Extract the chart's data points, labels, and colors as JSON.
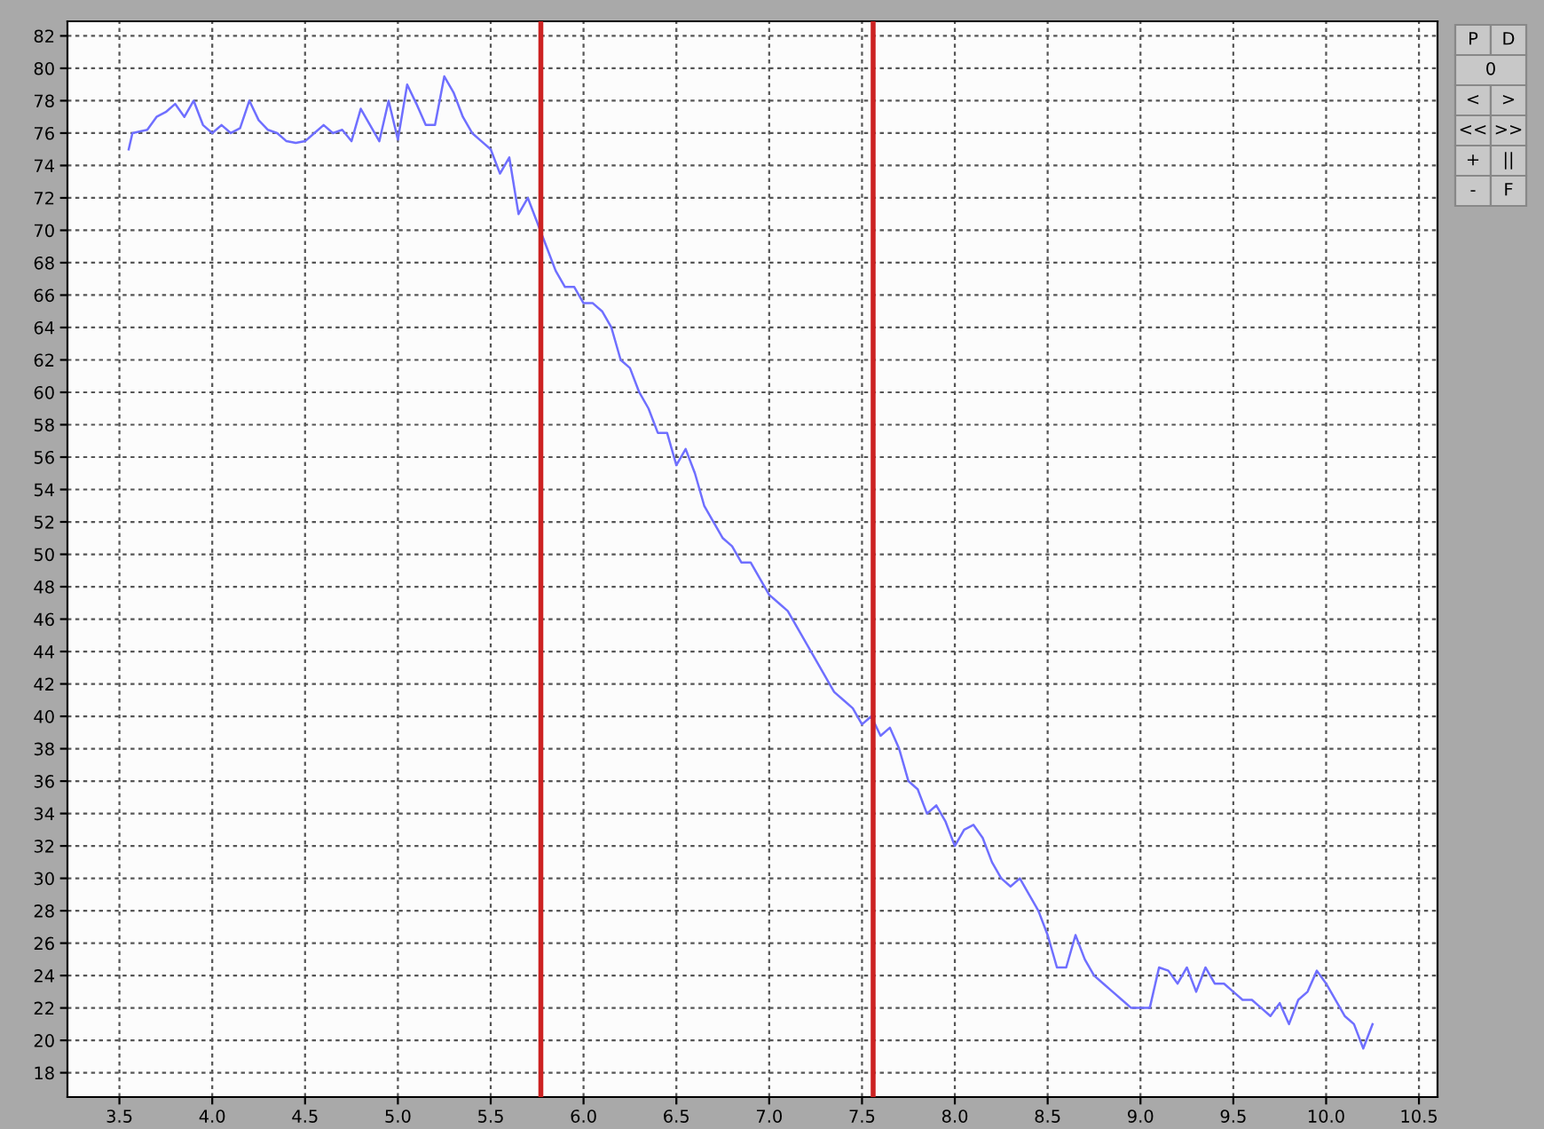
{
  "chart_data": {
    "type": "line",
    "x": [
      3.55,
      3.57,
      3.65,
      3.7,
      3.75,
      3.8,
      3.85,
      3.9,
      3.95,
      4.0,
      4.05,
      4.1,
      4.15,
      4.2,
      4.25,
      4.3,
      4.35,
      4.4,
      4.45,
      4.5,
      4.55,
      4.6,
      4.65,
      4.7,
      4.75,
      4.8,
      4.85,
      4.9,
      4.95,
      5.0,
      5.05,
      5.1,
      5.15,
      5.2,
      5.25,
      5.3,
      5.35,
      5.4,
      5.45,
      5.5,
      5.55,
      5.6,
      5.65,
      5.7,
      5.75,
      5.8,
      5.85,
      5.9,
      5.95,
      6.0,
      6.05,
      6.1,
      6.15,
      6.2,
      6.25,
      6.3,
      6.35,
      6.4,
      6.45,
      6.5,
      6.55,
      6.6,
      6.65,
      6.7,
      6.75,
      6.8,
      6.85,
      6.9,
      6.95,
      7.0,
      7.05,
      7.1,
      7.15,
      7.2,
      7.25,
      7.3,
      7.35,
      7.4,
      7.45,
      7.5,
      7.55,
      7.6,
      7.65,
      7.7,
      7.75,
      7.8,
      7.85,
      7.9,
      7.95,
      8.0,
      8.05,
      8.1,
      8.15,
      8.2,
      8.25,
      8.3,
      8.35,
      8.4,
      8.45,
      8.5,
      8.55,
      8.6,
      8.65,
      8.7,
      8.75,
      8.8,
      8.85,
      8.9,
      8.95,
      9.0,
      9.05,
      9.1,
      9.15,
      9.2,
      9.25,
      9.3,
      9.35,
      9.4,
      9.45,
      9.5,
      9.55,
      9.6,
      9.65,
      9.7,
      9.75,
      9.8,
      9.85,
      9.9,
      9.95,
      10.0,
      10.05,
      10.1,
      10.15,
      10.2,
      10.25
    ],
    "series": [
      {
        "color": "#6f6fff",
        "values": [
          75,
          76,
          76.2,
          77,
          77.3,
          77.8,
          77,
          78,
          76.5,
          76,
          76.5,
          76,
          76.3,
          78,
          76.8,
          76.2,
          76,
          75.5,
          75.4,
          75.5,
          76,
          76.5,
          76,
          76.2,
          75.5,
          77.5,
          76.5,
          75.5,
          78,
          75.6,
          79,
          77.8,
          76.5,
          76.5,
          79.5,
          78.5,
          77,
          76,
          75.5,
          75,
          73.5,
          74.5,
          71,
          72,
          70.5,
          69,
          67.5,
          66.5,
          66.5,
          65.5,
          65.5,
          65,
          64,
          62,
          61.5,
          60,
          59,
          57.5,
          57.5,
          55.5,
          56.5,
          55,
          53,
          52,
          51,
          50.5,
          49.5,
          49.5,
          48.5,
          47.5,
          47,
          46.5,
          45.5,
          44.5,
          43.5,
          42.5,
          41.5,
          41,
          40.5,
          39.5,
          40,
          38.8,
          39.3,
          38,
          36,
          35.5,
          34,
          34.5,
          33.5,
          32,
          33,
          33.3,
          32.5,
          31,
          30,
          29.5,
          30,
          29,
          28,
          26.5,
          24.5,
          24.5,
          26.5,
          25,
          24,
          23.5,
          23,
          22.5,
          22,
          22,
          22,
          24.5,
          24.3,
          23.5,
          24.5,
          23,
          24.5,
          23.5,
          23.5,
          23,
          22.5,
          22.5,
          22,
          21.5,
          22.3,
          21,
          22.5,
          23,
          24.3,
          23.5,
          22.5,
          21.5,
          21,
          19.5,
          21
        ]
      }
    ],
    "xlim": [
      3.22,
      10.6
    ],
    "ylim": [
      16.5,
      82.9
    ],
    "xticks": [
      3.5,
      {
        "value": 4,
        "label": "4.0"
      },
      4.5,
      {
        "value": 5,
        "label": "5.0"
      },
      5.5,
      {
        "value": 6,
        "label": "6.0"
      },
      6.5,
      {
        "value": 7,
        "label": "7.0"
      },
      7.5,
      {
        "value": 8,
        "label": "8.0"
      },
      8.5,
      {
        "value": 9,
        "label": "9.0"
      },
      9.5,
      {
        "value": 10,
        "label": "10.0"
      },
      10.5
    ],
    "yticks": [
      18,
      20,
      22,
      24,
      26,
      28,
      30,
      32,
      34,
      36,
      38,
      40,
      42,
      44,
      46,
      48,
      50,
      52,
      54,
      56,
      58,
      60,
      62,
      64,
      66,
      68,
      70,
      72,
      74,
      76,
      78,
      80,
      82
    ],
    "ref_lines": [
      {
        "axis": "x",
        "value": 5.77,
        "color": "#cc2222"
      },
      {
        "axis": "x",
        "value": 7.56,
        "color": "#cc2222"
      }
    ],
    "grid": true,
    "legend": false,
    "marker": "none",
    "line_style": "solid",
    "annotations": [
      "P",
      "D",
      "0",
      "<",
      ">",
      "<<",
      ">>",
      "+",
      "||",
      "-",
      "F"
    ]
  }
}
